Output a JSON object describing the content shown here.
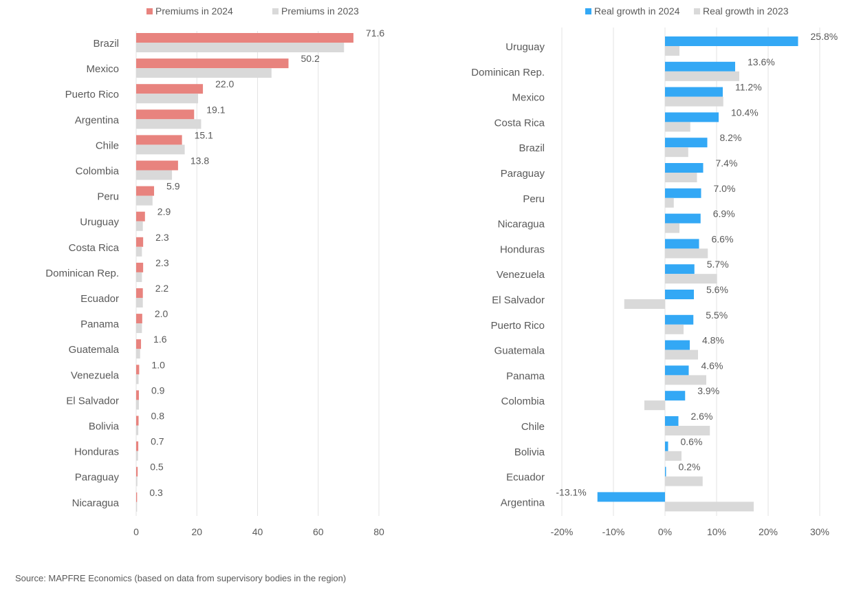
{
  "colors": {
    "premiums_2024": "#E8837E",
    "premiums_2023": "#D9D9D9",
    "growth_2024": "#33A8F5",
    "growth_2023": "#D9D9D9",
    "grid": "#E3E3E3",
    "text": "#595959"
  },
  "chart_data": [
    {
      "type": "bar",
      "orientation": "horizontal",
      "categories": [
        "Brazil",
        "Mexico",
        "Puerto Rico",
        "Argentina",
        "Chile",
        "Colombia",
        "Peru",
        "Uruguay",
        "Costa Rica",
        "Dominican Rep.",
        "Ecuador",
        "Panama",
        "Guatemala",
        "Venezuela",
        "El Salvador",
        "Bolivia",
        "Honduras",
        "Paraguay",
        "Nicaragua"
      ],
      "series": [
        {
          "name": "Premiums in 2024",
          "values": [
            71.6,
            50.2,
            22.0,
            19.1,
            15.1,
            13.8,
            5.9,
            2.9,
            2.3,
            2.3,
            2.2,
            2.0,
            1.6,
            1.0,
            0.9,
            0.8,
            0.7,
            0.5,
            0.3
          ],
          "labels": [
            "71.6",
            "50.2",
            "22.0",
            "19.1",
            "15.1",
            "13.8",
            "5.9",
            "2.9",
            "2.3",
            "2.3",
            "2.2",
            "2.0",
            "1.6",
            "1.0",
            "0.9",
            "0.8",
            "0.7",
            "0.5",
            "0.3"
          ]
        },
        {
          "name": "Premiums in 2023",
          "values": [
            68.5,
            44.6,
            20.4,
            21.4,
            16.0,
            11.8,
            5.4,
            2.2,
            1.9,
            1.9,
            2.2,
            1.9,
            1.3,
            0.8,
            0.9,
            0.7,
            0.6,
            0.4,
            0.3
          ]
        }
      ],
      "xlim": [
        0,
        80
      ],
      "xticks": [
        "0",
        "20",
        "40",
        "60",
        "80"
      ],
      "grid": true,
      "legend": "top"
    },
    {
      "type": "bar",
      "orientation": "horizontal",
      "categories": [
        "Uruguay",
        "Dominican Rep.",
        "Mexico",
        "Costa Rica",
        "Brazil",
        "Paraguay",
        "Peru",
        "Nicaragua",
        "Honduras",
        "Venezuela",
        "El Salvador",
        "Puerto Rico",
        "Guatemala",
        "Panama",
        "Colombia",
        "Chile",
        "Bolivia",
        "Ecuador",
        "Argentina"
      ],
      "series": [
        {
          "name": "Real growth in 2024",
          "values": [
            25.8,
            13.6,
            11.2,
            10.4,
            8.2,
            7.4,
            7.0,
            6.9,
            6.6,
            5.7,
            5.6,
            5.5,
            4.8,
            4.6,
            3.9,
            2.6,
            0.6,
            0.2,
            -13.1
          ],
          "labels": [
            "25.8%",
            "13.6%",
            "11.2%",
            "10.4%",
            "8.2%",
            "7.4%",
            "7.0%",
            "6.9%",
            "6.6%",
            "5.7%",
            "5.6%",
            "5.5%",
            "4.8%",
            "4.6%",
            "3.9%",
            "2.6%",
            "0.6%",
            "0.2%",
            "-13.1%"
          ]
        },
        {
          "name": "Real growth in 2023",
          "values": [
            2.8,
            14.4,
            11.3,
            4.9,
            4.5,
            6.2,
            1.7,
            2.8,
            8.3,
            10.1,
            -7.9,
            3.6,
            6.4,
            8.0,
            -4.0,
            8.7,
            3.2,
            7.3,
            17.2
          ]
        }
      ],
      "xlim": [
        -20,
        30
      ],
      "xticks": [
        "-20%",
        "-10%",
        "0%",
        "10%",
        "20%",
        "30%"
      ],
      "grid": true,
      "legend": "top"
    }
  ],
  "source": "Source: MAPFRE Economics (based on data from supervisory bodies in the region)"
}
